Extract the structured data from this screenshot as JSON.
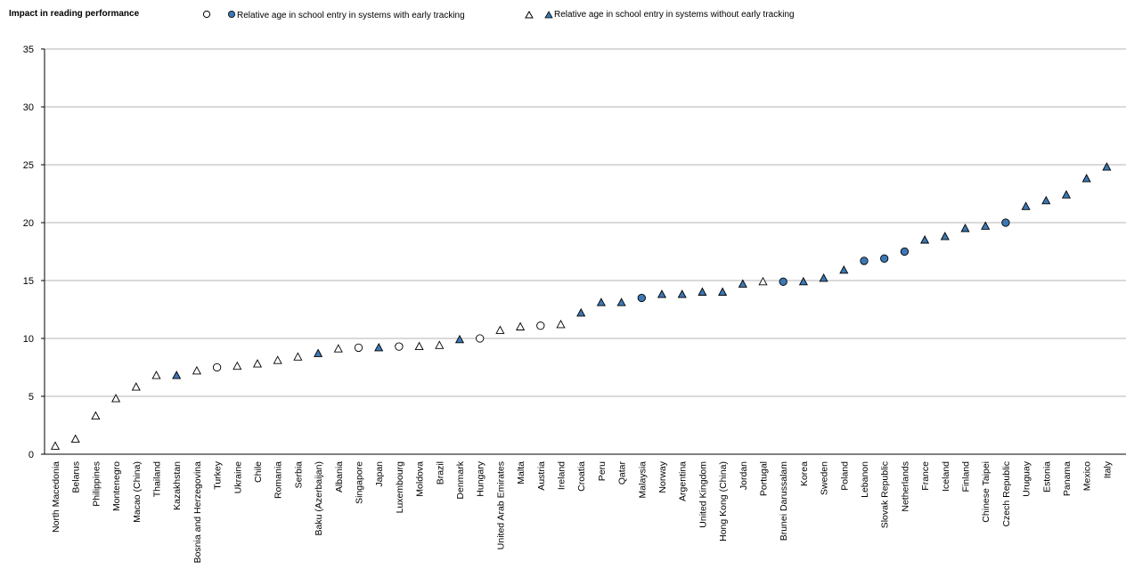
{
  "chart_data": {
    "type": "scatter",
    "title": "",
    "ylabel": "Impact in reading performance",
    "xlabel": "",
    "ylim": [
      0,
      35
    ],
    "yticks": [
      0,
      5,
      10,
      15,
      20,
      25,
      30,
      35
    ],
    "grid": true,
    "legend_position": "top",
    "colors": {
      "filled": "#3c78b4",
      "open": "#ffffff",
      "stroke": "#000000",
      "grid": "#b5b5b5"
    },
    "legend": [
      {
        "marker": "circle",
        "filled": false,
        "label": ""
      },
      {
        "marker": "circle",
        "filled": true,
        "label": "Relative age in school entry in systems with early tracking"
      },
      {
        "marker": "triangle",
        "filled": false,
        "label": ""
      },
      {
        "marker": "triangle",
        "filled": true,
        "label": "Relative age in school entry in systems without early tracking"
      }
    ],
    "points": [
      {
        "country": "North Macedonia",
        "value": 0.7,
        "marker": "triangle",
        "filled": false
      },
      {
        "country": "Belarus",
        "value": 1.3,
        "marker": "triangle",
        "filled": false
      },
      {
        "country": "Philippines",
        "value": 3.3,
        "marker": "triangle",
        "filled": false
      },
      {
        "country": "Montenegro",
        "value": 4.8,
        "marker": "triangle",
        "filled": false
      },
      {
        "country": "Macao (China)",
        "value": 5.8,
        "marker": "triangle",
        "filled": false
      },
      {
        "country": "Thailand",
        "value": 6.8,
        "marker": "triangle",
        "filled": false
      },
      {
        "country": "Kazakhstan",
        "value": 6.8,
        "marker": "triangle",
        "filled": true
      },
      {
        "country": "Bosnia and Herzegovina",
        "value": 7.2,
        "marker": "triangle",
        "filled": false
      },
      {
        "country": "Turkey",
        "value": 7.5,
        "marker": "circle",
        "filled": false
      },
      {
        "country": "Ukraine",
        "value": 7.6,
        "marker": "triangle",
        "filled": false
      },
      {
        "country": "Chile",
        "value": 7.8,
        "marker": "triangle",
        "filled": false
      },
      {
        "country": "Romania",
        "value": 8.1,
        "marker": "triangle",
        "filled": false
      },
      {
        "country": "Serbia",
        "value": 8.4,
        "marker": "triangle",
        "filled": false
      },
      {
        "country": "Baku (Azerbaijan)",
        "value": 8.7,
        "marker": "triangle",
        "filled": true
      },
      {
        "country": "Albania",
        "value": 9.1,
        "marker": "triangle",
        "filled": false
      },
      {
        "country": "Singapore",
        "value": 9.2,
        "marker": "circle",
        "filled": false
      },
      {
        "country": "Japan",
        "value": 9.2,
        "marker": "triangle",
        "filled": true
      },
      {
        "country": "Luxembourg",
        "value": 9.3,
        "marker": "circle",
        "filled": false
      },
      {
        "country": "Moldova",
        "value": 9.3,
        "marker": "triangle",
        "filled": false
      },
      {
        "country": "Brazil",
        "value": 9.4,
        "marker": "triangle",
        "filled": false
      },
      {
        "country": "Denmark",
        "value": 9.9,
        "marker": "triangle",
        "filled": true
      },
      {
        "country": "Hungary",
        "value": 10.0,
        "marker": "circle",
        "filled": false
      },
      {
        "country": "United Arab Emirates",
        "value": 10.7,
        "marker": "triangle",
        "filled": false
      },
      {
        "country": "Malta",
        "value": 11.0,
        "marker": "triangle",
        "filled": false
      },
      {
        "country": "Austria",
        "value": 11.1,
        "marker": "circle",
        "filled": false
      },
      {
        "country": "Ireland",
        "value": 11.2,
        "marker": "triangle",
        "filled": false
      },
      {
        "country": "Croatia",
        "value": 12.2,
        "marker": "triangle",
        "filled": true
      },
      {
        "country": "Peru",
        "value": 13.1,
        "marker": "triangle",
        "filled": true
      },
      {
        "country": "Qatar",
        "value": 13.1,
        "marker": "triangle",
        "filled": true
      },
      {
        "country": "Malaysia",
        "value": 13.5,
        "marker": "circle",
        "filled": true
      },
      {
        "country": "Norway",
        "value": 13.8,
        "marker": "triangle",
        "filled": true
      },
      {
        "country": "Argentina",
        "value": 13.8,
        "marker": "triangle",
        "filled": true
      },
      {
        "country": "United Kingdom",
        "value": 14.0,
        "marker": "triangle",
        "filled": true
      },
      {
        "country": "Hong Kong (China)",
        "value": 14.0,
        "marker": "triangle",
        "filled": true
      },
      {
        "country": "Jordan",
        "value": 14.7,
        "marker": "triangle",
        "filled": true
      },
      {
        "country": "Portugal",
        "value": 14.9,
        "marker": "triangle",
        "filled": false
      },
      {
        "country": "Brunei Darussalam",
        "value": 14.9,
        "marker": "circle",
        "filled": true
      },
      {
        "country": "Korea",
        "value": 14.9,
        "marker": "triangle",
        "filled": true
      },
      {
        "country": "Sweden",
        "value": 15.2,
        "marker": "triangle",
        "filled": true
      },
      {
        "country": "Poland",
        "value": 15.9,
        "marker": "triangle",
        "filled": true
      },
      {
        "country": "Lebanon",
        "value": 16.7,
        "marker": "circle",
        "filled": true
      },
      {
        "country": "Slovak Republic",
        "value": 16.9,
        "marker": "circle",
        "filled": true
      },
      {
        "country": "Netherlands",
        "value": 17.5,
        "marker": "circle",
        "filled": true
      },
      {
        "country": "France",
        "value": 18.5,
        "marker": "triangle",
        "filled": true
      },
      {
        "country": "Iceland",
        "value": 18.8,
        "marker": "triangle",
        "filled": true
      },
      {
        "country": "Finland",
        "value": 19.5,
        "marker": "triangle",
        "filled": true
      },
      {
        "country": "Chinese Taipei",
        "value": 19.7,
        "marker": "triangle",
        "filled": true
      },
      {
        "country": "Czech Republic",
        "value": 20.0,
        "marker": "circle",
        "filled": true
      },
      {
        "country": "Uruguay",
        "value": 21.4,
        "marker": "triangle",
        "filled": true
      },
      {
        "country": "Estonia",
        "value": 21.9,
        "marker": "triangle",
        "filled": true
      },
      {
        "country": "Panama",
        "value": 22.4,
        "marker": "triangle",
        "filled": true
      },
      {
        "country": "Mexico",
        "value": 23.8,
        "marker": "triangle",
        "filled": true
      },
      {
        "country": "Italy",
        "value": 24.8,
        "marker": "triangle",
        "filled": true
      }
    ]
  }
}
